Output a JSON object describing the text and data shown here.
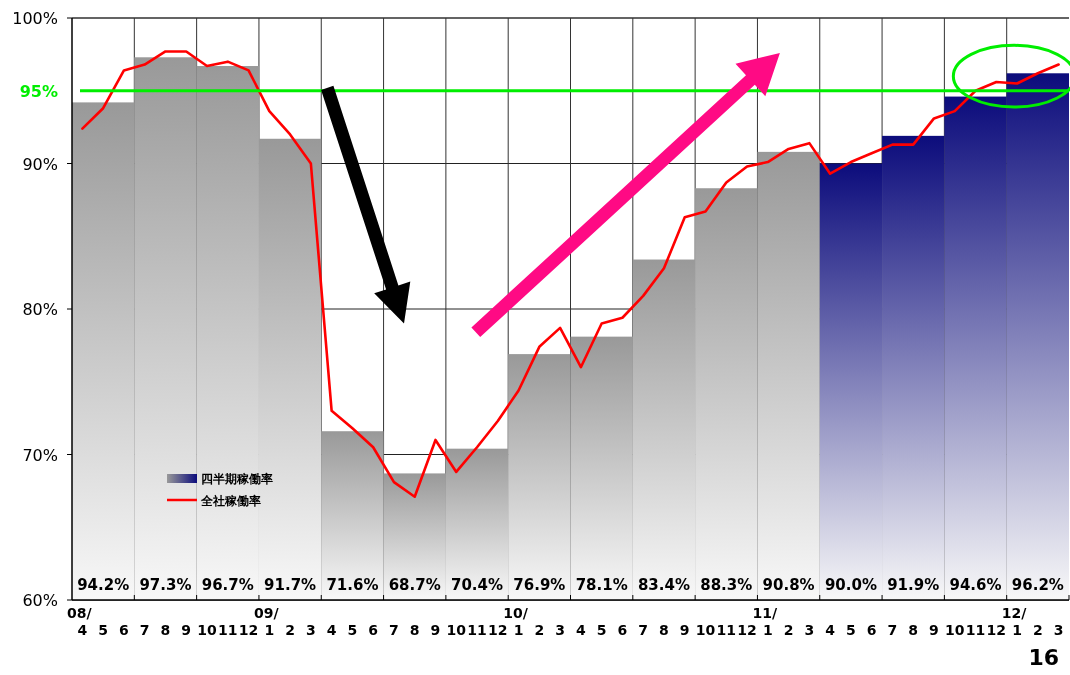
{
  "chart_data": {
    "type": "bar",
    "xlim": [
      "2008-03-16",
      "2012-03-16"
    ],
    "xticks": [
      {
        "value": "2008-04",
        "label": "08/\n4"
      },
      {
        "value": "2008-05",
        "label": "5"
      },
      {
        "value": "2008-06",
        "label": "6"
      },
      {
        "value": "2008-07",
        "label": "7"
      },
      {
        "value": "2008-08",
        "label": "8"
      },
      {
        "value": "2008-09",
        "label": "9"
      },
      {
        "value": "2008-10",
        "label": "10"
      },
      {
        "value": "2008-11",
        "label": "11"
      },
      {
        "value": "2008-12",
        "label": "12"
      },
      {
        "value": "2009-01",
        "label": "09/\n1"
      },
      {
        "value": "2009-02",
        "label": "2"
      },
      {
        "value": "2009-03",
        "label": "3"
      },
      {
        "value": "2009-04",
        "label": "4"
      },
      {
        "value": "2009-05",
        "label": "5"
      },
      {
        "value": "2009-06",
        "label": "6"
      },
      {
        "value": "2009-07",
        "label": "7"
      },
      {
        "value": "2009-08",
        "label": "8"
      },
      {
        "value": "2009-09",
        "label": "9"
      },
      {
        "value": "2009-10",
        "label": "10"
      },
      {
        "value": "2009-11",
        "label": "11"
      },
      {
        "value": "2009-12",
        "label": "12"
      },
      {
        "value": "2010-01",
        "label": "10/\n1"
      },
      {
        "value": "2010-02",
        "label": "2"
      },
      {
        "value": "2010-03",
        "label": "3"
      },
      {
        "value": "2010-04",
        "label": "4"
      },
      {
        "value": "2010-05",
        "label": "5"
      },
      {
        "value": "2010-06",
        "label": "6"
      },
      {
        "value": "2010-07",
        "label": "7"
      },
      {
        "value": "2010-08",
        "label": "8"
      },
      {
        "value": "2010-09",
        "label": "9"
      },
      {
        "value": "2010-10",
        "label": "10"
      },
      {
        "value": "2010-11",
        "label": "11"
      },
      {
        "value": "2010-12",
        "label": "12"
      },
      {
        "value": "2011-01",
        "label": "11/\n1"
      },
      {
        "value": "2011-02",
        "label": "2"
      },
      {
        "value": "2011-03",
        "label": "3"
      },
      {
        "value": "2011-04",
        "label": "4"
      },
      {
        "value": "2011-05",
        "label": "5"
      },
      {
        "value": "2011-06",
        "label": "6"
      },
      {
        "value": "2011-07",
        "label": "7"
      },
      {
        "value": "2011-08",
        "label": "8"
      },
      {
        "value": "2011-09",
        "label": "9"
      },
      {
        "value": "2011-10",
        "label": "10"
      },
      {
        "value": "2011-11",
        "label": "11"
      },
      {
        "value": "2011-12",
        "label": "12"
      },
      {
        "value": "2012-01",
        "label": "12/\n1"
      },
      {
        "value": "2012-02",
        "label": "2"
      },
      {
        "value": "2012-03",
        "label": "3"
      }
    ],
    "ylim": [
      60,
      100
    ],
    "yticks": [
      {
        "value": 60,
        "label": "60%"
      },
      {
        "value": 70,
        "label": "70%"
      },
      {
        "value": 80,
        "label": "80%"
      },
      {
        "value": 90,
        "label": "90%"
      },
      {
        "value": 100,
        "label": "100%"
      }
    ],
    "grid": true,
    "legend": "bottom left",
    "series": [
      {
        "name": "四半期稼働率",
        "type": "bar",
        "color": "#0c0c7c",
        "x": [
          "2008-05",
          "2008-08",
          "2008-11",
          "2009-02",
          "2009-05",
          "2009-08",
          "2009-11",
          "2010-02",
          "2010-05",
          "2010-08",
          "2010-11",
          "2011-02",
          "2011-05",
          "2011-08",
          "2011-11",
          "2012-02"
        ],
        "values": [
          94.2,
          97.3,
          96.7,
          91.7,
          71.6,
          68.7,
          70.4,
          76.9,
          78.1,
          83.4,
          88.3,
          90.8,
          90.0,
          91.9,
          94.6,
          96.2
        ],
        "colors": [
          "#999999",
          "#999999",
          "#999999",
          "#999999",
          "#999999",
          "#999999",
          "#999999",
          "#999999",
          "#999999",
          "#999999",
          "#999999",
          "#999999",
          "#0c0c7c",
          "#0c0c7c",
          "#0c0c7c",
          "#0c0c7c"
        ],
        "value_labels": [
          "94.2%",
          "97.3%",
          "96.7%",
          "91.7%",
          "71.6%",
          "68.7%",
          "70.4%",
          "76.9%",
          "78.1%",
          "83.4%",
          "88.3%",
          "90.8%",
          "90.0%",
          "91.9%",
          "94.6%",
          "96.2%"
        ]
      },
      {
        "name": "全社稼働率",
        "type": "line",
        "color": "#ff0000",
        "x": [
          "2008-04",
          "2008-05",
          "2008-06",
          "2008-07",
          "2008-08",
          "2008-09",
          "2008-10",
          "2008-11",
          "2008-12",
          "2009-01",
          "2009-02",
          "2009-03",
          "2009-04",
          "2009-05",
          "2009-06",
          "2009-07",
          "2009-08",
          "2009-09",
          "2009-10",
          "2009-11",
          "2009-12",
          "2010-01",
          "2010-02",
          "2010-03",
          "2010-04",
          "2010-05",
          "2010-06",
          "2010-07",
          "2010-08",
          "2010-09",
          "2010-10",
          "2010-11",
          "2010-12",
          "2011-01",
          "2011-02",
          "2011-03",
          "2011-04",
          "2011-05",
          "2011-06",
          "2011-07",
          "2011-08",
          "2011-09",
          "2011-10",
          "2011-11",
          "2011-12",
          "2012-01",
          "2012-02",
          "2012-03"
        ],
        "values": [
          92.4,
          93.8,
          96.4,
          96.8,
          97.7,
          97.7,
          96.7,
          97.0,
          96.4,
          93.6,
          92.0,
          90.0,
          73.0,
          71.8,
          70.5,
          68.1,
          67.1,
          71.0,
          68.8,
          70.5,
          72.3,
          74.4,
          77.4,
          78.7,
          76.0,
          79.0,
          79.4,
          80.9,
          82.8,
          86.3,
          86.7,
          88.7,
          89.8,
          90.1,
          91.0,
          91.4,
          89.3,
          90.1,
          90.7,
          91.3,
          91.3,
          93.1,
          93.6,
          95.0,
          95.6,
          95.5,
          96.2,
          96.8
        ]
      }
    ],
    "ref_lines": [
      {
        "axis": "y",
        "value": 95,
        "label": "95%",
        "color": "#00ee00"
      }
    ],
    "annotations": [
      "16"
    ]
  }
}
